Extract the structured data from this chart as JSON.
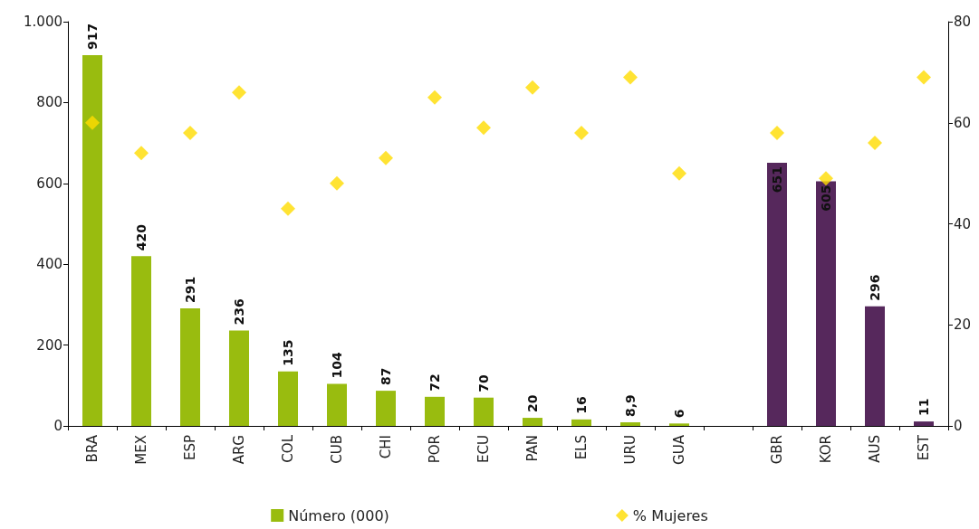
{
  "chart_data": {
    "type": "bar",
    "categories": [
      "BRA",
      "MEX",
      "ESP",
      "ARG",
      "COL",
      "CUB",
      "CHI",
      "POR",
      "ECU",
      "PAN",
      "ELS",
      "URU",
      "GUA",
      null,
      "GBR",
      "KOR",
      "AUS",
      "EST"
    ],
    "series": [
      {
        "name": "Número (000)",
        "color": "#99bc0f",
        "colors": [
          "#99bc0f",
          "#99bc0f",
          "#99bc0f",
          "#99bc0f",
          "#99bc0f",
          "#99bc0f",
          "#99bc0f",
          "#99bc0f",
          "#99bc0f",
          "#99bc0f",
          "#99bc0f",
          "#99bc0f",
          "#99bc0f",
          "#99bc0f",
          "#56285c",
          "#56285c",
          "#56285c",
          "#56285c"
        ],
        "values": [
          917,
          420,
          291,
          236,
          135,
          104,
          87,
          72,
          70,
          20,
          16,
          8.9,
          6,
          null,
          651,
          605,
          296,
          11
        ],
        "value_labels": [
          "917",
          "420",
          "291",
          "236",
          "135",
          "104",
          "87",
          "72",
          "70",
          "20",
          "16",
          "8,9",
          "6",
          null,
          "651",
          "605",
          "296",
          "11"
        ]
      },
      {
        "name": "% Mujeres",
        "type": "scatter",
        "axis": "y2",
        "marker": "diamond",
        "color": "#ffdc00",
        "values": [
          60,
          54,
          58,
          66,
          43,
          48,
          53,
          65,
          59,
          67,
          58,
          69,
          50,
          null,
          58,
          49,
          56,
          69
        ]
      }
    ],
    "ylim": [
      0,
      1000
    ],
    "yticks": [
      0,
      200,
      400,
      600,
      800,
      {
        "value": 1000,
        "label": "1.000"
      }
    ],
    "y2lim": [
      0,
      80
    ],
    "y2ticks": [
      0,
      20,
      40,
      60,
      80
    ],
    "grid": false,
    "legend": "bottom"
  }
}
